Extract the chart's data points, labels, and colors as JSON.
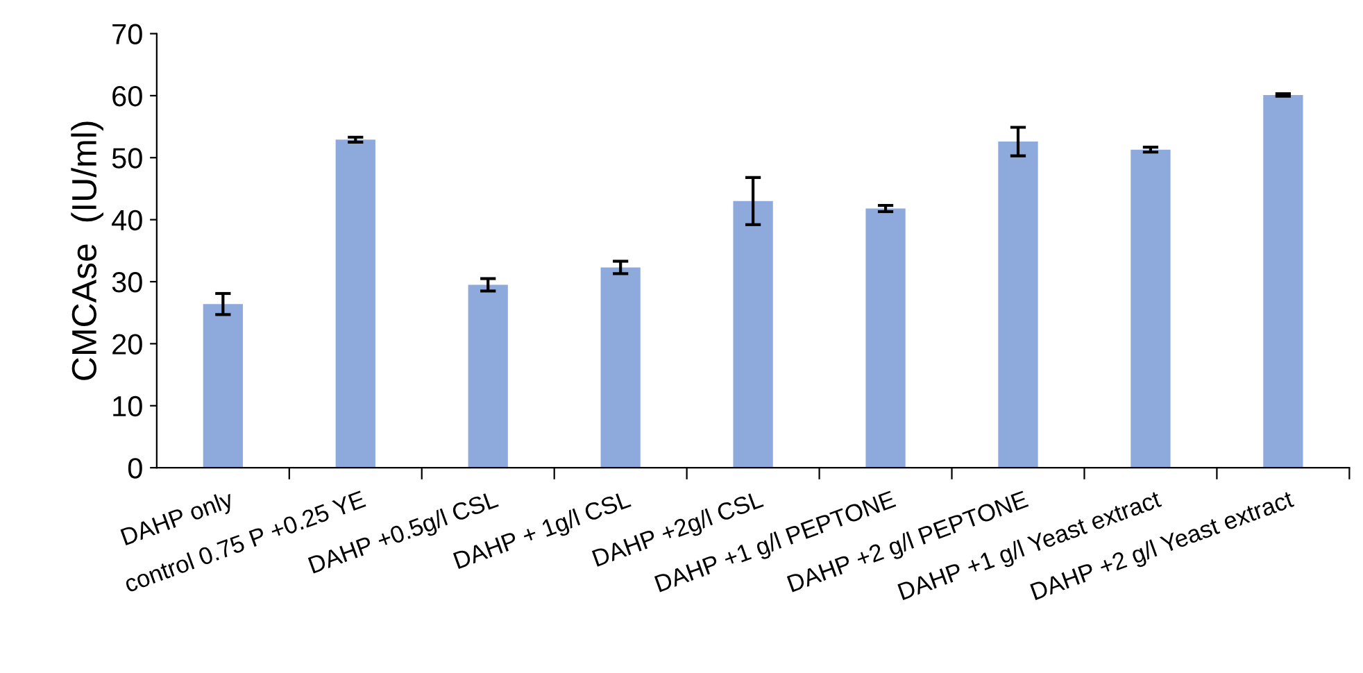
{
  "chart_data": {
    "type": "bar",
    "ylabel": "CMCAse  (IU/ml)",
    "categories": [
      "DAHP only",
      "control 0.75 P +0.25 YE",
      "DAHP +0.5g/l CSL",
      "DAHP + 1g/l CSL",
      "DAHP +2g/l CSL",
      "DAHP +1 g/l PEPTONE",
      "DAHP +2 g/l PEPTONE",
      "DAHP +1 g/l Yeast extract",
      "DAHP +2 g/l Yeast extract"
    ],
    "values": [
      26.4,
      52.9,
      29.5,
      32.3,
      43.0,
      41.8,
      52.6,
      51.3,
      60.1
    ],
    "errors": [
      1.7,
      0.4,
      1.0,
      1.0,
      3.8,
      0.5,
      2.3,
      0.4,
      0.2
    ],
    "color": "#8eaadc",
    "ylim": [
      0,
      70
    ],
    "yticks": [
      0,
      10,
      20,
      30,
      40,
      50,
      60,
      70
    ],
    "grid": false,
    "legend": false
  }
}
